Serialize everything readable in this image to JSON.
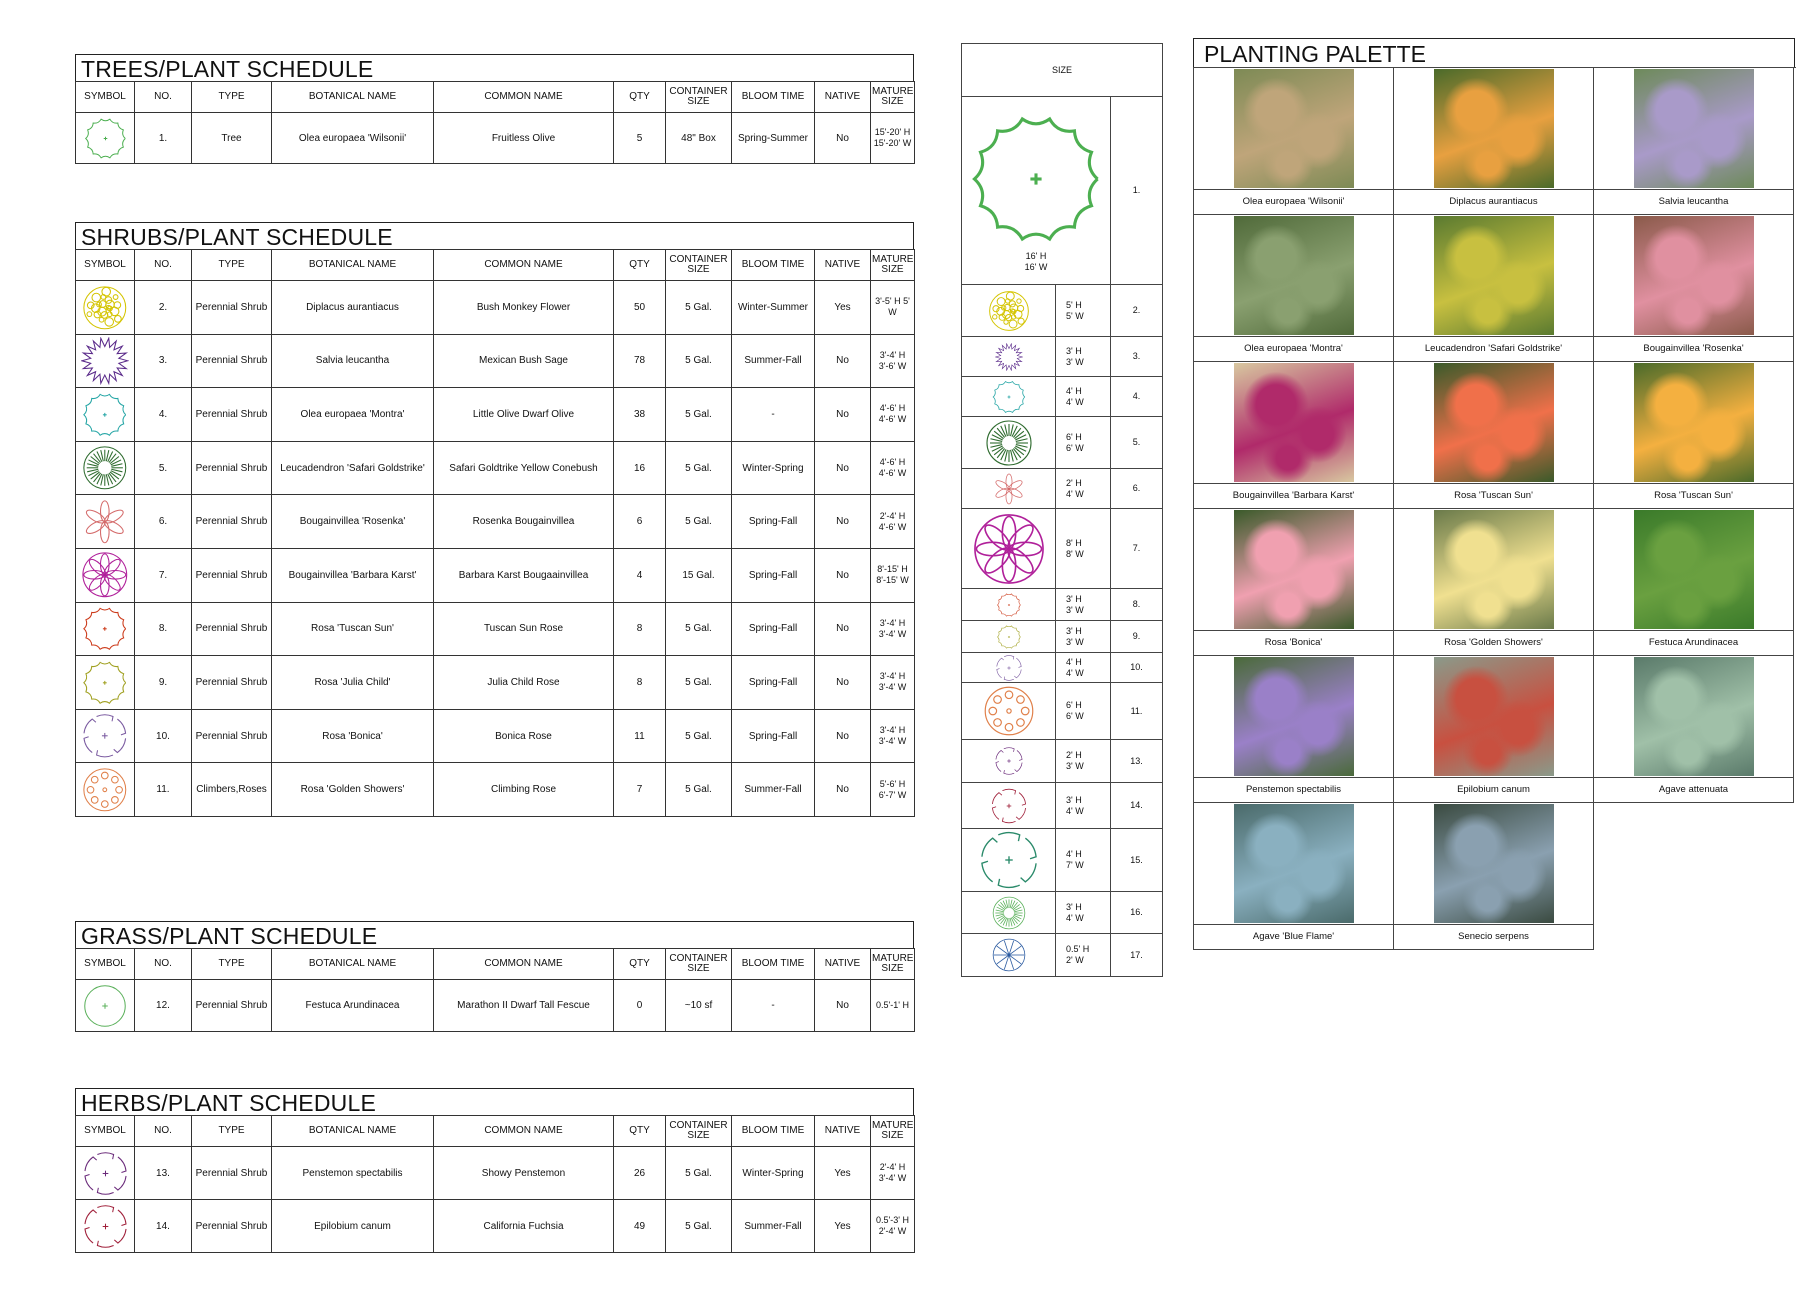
{
  "headers": {
    "symbol": "SYMBOL",
    "no": "NO.",
    "type": "TYPE",
    "botanical": "BOTANICAL NAME",
    "common": "COMMON NAME",
    "qty": "QTY",
    "container": "CONTAINER SIZE",
    "bloom": "BLOOM TIME",
    "native": "NATIVE",
    "mature": "MATURE SIZE"
  },
  "trees": {
    "title": "TREES/PLANT SCHEDULE",
    "rows": [
      {
        "no": "1.",
        "type": "Tree",
        "botanical": "Olea europaea 'Wilsonii'",
        "common": "Fruitless Olive",
        "qty": "5",
        "container": "48\" Box",
        "bloom": "Spring-Summer",
        "native": "No",
        "mature": "15'-20' H 15'-20' W",
        "color": "#4caf50",
        "shape": "scallop"
      }
    ]
  },
  "shrubs": {
    "title": "SHRUBS/PLANT SCHEDULE",
    "rows": [
      {
        "no": "2.",
        "type": "Perennial Shrub",
        "botanical": "Diplacus aurantiacus",
        "common": "Bush Monkey Flower",
        "qty": "50",
        "container": "5 Gal.",
        "bloom": "Winter-Summer",
        "native": "Yes",
        "mature": "3'-5' H 5' W",
        "color": "#d4c400",
        "shape": "blob"
      },
      {
        "no": "3.",
        "type": "Perennial Shrub",
        "botanical": "Salvia leucantha",
        "common": "Mexican Bush Sage",
        "qty": "78",
        "container": "5 Gal.",
        "bloom": "Summer-Fall",
        "native": "No",
        "mature": "3'-4' H 3'-6' W",
        "color": "#5a2a8a",
        "shape": "spiky"
      },
      {
        "no": "4.",
        "type": "Perennial Shrub",
        "botanical": "Olea europaea 'Montra'",
        "common": "Little Olive Dwarf Olive",
        "qty": "38",
        "container": "5 Gal.",
        "bloom": "-",
        "native": "No",
        "mature": "4'-6' H 4'-6' W",
        "color": "#26a6a6",
        "shape": "scallop"
      },
      {
        "no": "5.",
        "type": "Perennial Shrub",
        "botanical": "Leucadendron 'Safari Goldstrike'",
        "common": "Safari Goldtrike Yellow Conebush",
        "qty": "16",
        "container": "5 Gal.",
        "bloom": "Winter-Spring",
        "native": "No",
        "mature": "4'-6' H 4'-6' W",
        "color": "#2e6b2e",
        "shape": "rays"
      },
      {
        "no": "6.",
        "type": "Perennial Shrub",
        "botanical": "Bougainvillea 'Rosenka'",
        "common": "Rosenka Bougainvillea",
        "qty": "6",
        "container": "5 Gal.",
        "bloom": "Spring-Fall",
        "native": "No",
        "mature": "2'-4' H 4'-6' W",
        "color": "#d46a6a",
        "shape": "petals6"
      },
      {
        "no": "7.",
        "type": "Perennial Shrub",
        "botanical": "Bougainvillea 'Barbara Karst'",
        "common": "Barbara Karst Bougaainvillea",
        "qty": "4",
        "container": "15 Gal.",
        "bloom": "Spring-Fall",
        "native": "No",
        "mature": "8'-15' H 8'-15' W",
        "color": "#b0209a",
        "shape": "petals8"
      },
      {
        "no": "8.",
        "type": "Perennial Shrub",
        "botanical": "Rosa 'Tuscan Sun'",
        "common": "Tuscan Sun Rose",
        "qty": "8",
        "container": "5 Gal.",
        "bloom": "Spring-Fall",
        "native": "No",
        "mature": "3'-4' H 3'-4' W",
        "color": "#cc3a1a",
        "shape": "scallop"
      },
      {
        "no": "9.",
        "type": "Perennial Shrub",
        "botanical": "Rosa 'Julia Child'",
        "common": "Julia Child Rose",
        "qty": "8",
        "container": "5 Gal.",
        "bloom": "Spring-Fall",
        "native": "No",
        "mature": "3'-4' H 3'-4' W",
        "color": "#a0a020",
        "shape": "scallop"
      },
      {
        "no": "10.",
        "type": "Perennial Shrub",
        "botanical": "Rosa 'Bonica'",
        "common": "Bonica Rose",
        "qty": "11",
        "container": "5 Gal.",
        "bloom": "Spring-Fall",
        "native": "No",
        "mature": "3'-4' H 3'-4' W",
        "color": "#7a5aa0",
        "shape": "notched"
      },
      {
        "no": "11.",
        "type": "Climbers,Roses",
        "botanical": "Rosa 'Golden Showers'",
        "common": "Climbing Rose",
        "qty": "7",
        "container": "5 Gal.",
        "bloom": "Summer-Fall",
        "native": "No",
        "mature": "5'-6' H 6'-7' W",
        "color": "#e0804a",
        "shape": "rings"
      }
    ]
  },
  "grass": {
    "title": "GRASS/PLANT SCHEDULE",
    "rows": [
      {
        "no": "12.",
        "type": "Perennial Shrub",
        "botanical": "Festuca Arundinacea",
        "common": "Marathon II Dwarf Tall Fescue",
        "qty": "0",
        "container": "~10 sf",
        "bloom": "-",
        "native": "No",
        "mature": "0.5'-1' H",
        "color": "#5ab05a",
        "shape": "plain"
      }
    ]
  },
  "herbs": {
    "title": "HERBS/PLANT SCHEDULE",
    "rows": [
      {
        "no": "13.",
        "type": "Perennial Shrub",
        "botanical": "Penstemon spectabilis",
        "common": "Showy Penstemon",
        "qty": "26",
        "container": "5 Gal.",
        "bloom": "Winter-Spring",
        "native": "Yes",
        "mature": "2'-4' H 3'-4' W",
        "color": "#6a2a7a",
        "shape": "notched"
      },
      {
        "no": "14.",
        "type": "Perennial Shrub",
        "botanical": "Epilobium canum",
        "common": "California Fuchsia",
        "qty": "49",
        "container": "5 Gal.",
        "bloom": "Summer-Fall",
        "native": "Yes",
        "mature": "0.5'-3' H 2'-4' W",
        "color": "#a0203a",
        "shape": "notched"
      }
    ]
  },
  "size_legend": {
    "header": "SIZE",
    "rows": [
      {
        "h": "16' H",
        "w": "16' W",
        "no": "1.",
        "color": "#4caf50",
        "shape": "scallop"
      },
      {
        "h": "5' H",
        "w": "5' W",
        "no": "2.",
        "color": "#d4c400",
        "shape": "blob"
      },
      {
        "h": "3' H",
        "w": "3' W",
        "no": "3.",
        "color": "#5a2a8a",
        "shape": "spiky"
      },
      {
        "h": "4' H",
        "w": "4' W",
        "no": "4.",
        "color": "#26a6a6",
        "shape": "scallop"
      },
      {
        "h": "6' H",
        "w": "6' W",
        "no": "5.",
        "color": "#2e6b2e",
        "shape": "rays"
      },
      {
        "h": "2' H",
        "w": "4' W",
        "no": "6.",
        "color": "#d46a6a",
        "shape": "petals6"
      },
      {
        "h": "8' H",
        "w": "8' W",
        "no": "7.",
        "color": "#b0209a",
        "shape": "petals8"
      },
      {
        "h": "3' H",
        "w": "3' W",
        "no": "8.",
        "color": "#cc3a1a",
        "shape": "scallop"
      },
      {
        "h": "3' H",
        "w": "3' W",
        "no": "9.",
        "color": "#a0a020",
        "shape": "scallop"
      },
      {
        "h": "4' H",
        "w": "4' W",
        "no": "10.",
        "color": "#7a5aa0",
        "shape": "notched"
      },
      {
        "h": "6' H",
        "w": "6' W",
        "no": "11.",
        "color": "#e0804a",
        "shape": "rings"
      },
      {
        "h": "2' H",
        "w": "3' W",
        "no": "13.",
        "color": "#6a2a7a",
        "shape": "notched"
      },
      {
        "h": "3' H",
        "w": "4' W",
        "no": "14.",
        "color": "#a0203a",
        "shape": "notched"
      },
      {
        "h": "4' H",
        "w": "7' W",
        "no": "15.",
        "color": "#2a8a6a",
        "shape": "notched"
      },
      {
        "h": "3' H",
        "w": "4' W",
        "no": "16.",
        "color": "#5ab05a",
        "shape": "rays"
      },
      {
        "h": "0.5' H",
        "w": "2' W",
        "no": "17.",
        "color": "#2a5aa0",
        "shape": "star"
      }
    ]
  },
  "palette": {
    "title": "PLANTING PALETTE",
    "items": [
      {
        "label": "Olea europaea 'Wilsonii'",
        "colors": [
          "#bfa57a",
          "#7d8a55"
        ]
      },
      {
        "label": "Diplacus aurantiacus",
        "colors": [
          "#e8a040",
          "#4a6a2a"
        ]
      },
      {
        "label": "Salvia leucantha",
        "colors": [
          "#a99ac9",
          "#6d8a5a"
        ]
      },
      {
        "label": "Olea europaea 'Montra'",
        "colors": [
          "#8aa070",
          "#506a3a"
        ]
      },
      {
        "label": "Leucadendron 'Safari Goldstrike'",
        "colors": [
          "#c8c040",
          "#5a7a30"
        ]
      },
      {
        "label": "Bougainvillea 'Rosenka'",
        "colors": [
          "#e090a0",
          "#8a5a4a"
        ]
      },
      {
        "label": "Bougainvillea 'Barbara Karst'",
        "colors": [
          "#b02a6a",
          "#d8c8a0"
        ]
      },
      {
        "label": "Rosa 'Tuscan Sun'",
        "colors": [
          "#f0704a",
          "#3a5a2a"
        ]
      },
      {
        "label": "Rosa 'Tuscan Sun'",
        "colors": [
          "#f4b040",
          "#4a6a2a"
        ]
      },
      {
        "label": "Rosa 'Bonica'",
        "colors": [
          "#f0a0b0",
          "#3a5a2a"
        ]
      },
      {
        "label": "Rosa 'Golden Showers'",
        "colors": [
          "#f0e090",
          "#6a7a4a"
        ]
      },
      {
        "label": "Festuca Arundinacea",
        "colors": [
          "#6aa040",
          "#3a7a2a"
        ]
      },
      {
        "label": "Penstemon spectabilis",
        "colors": [
          "#9a80c8",
          "#4a6a3a"
        ]
      },
      {
        "label": "Epilobium canum",
        "colors": [
          "#c85040",
          "#8a9a8a"
        ]
      },
      {
        "label": "Agave attenuata",
        "colors": [
          "#a0c0a8",
          "#5a7a6a"
        ]
      },
      {
        "label": "Agave 'Blue Flame'",
        "colors": [
          "#8ab0c0",
          "#4a6a6a"
        ]
      },
      {
        "label": "Senecio serpens",
        "colors": [
          "#8aa0b0",
          "#3a4a40"
        ]
      }
    ]
  }
}
